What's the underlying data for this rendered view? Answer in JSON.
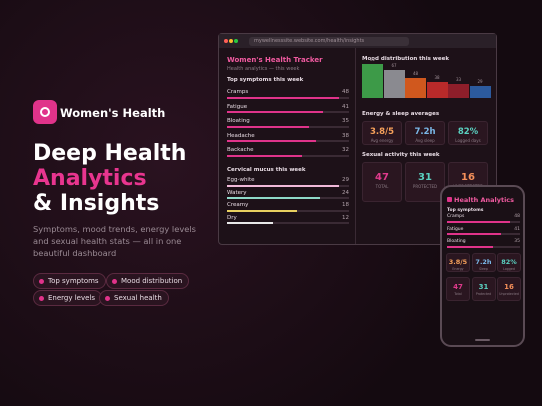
{
  "brand": "Women's Health",
  "headline": [
    "Deep Health",
    "Analytics",
    "& Insights"
  ],
  "description": "Symptoms, mood trends, energy levels and sexual health stats — all in one beautiful dashboard",
  "features": [
    "Top symptoms",
    "Mood distribution",
    "Energy levels",
    "Sexual health"
  ],
  "browser": {
    "url": "mywellnesssite.website.com/health/insights",
    "title": "Women's Health Tracker",
    "subtitle": "Health analytics — this week",
    "symptoms": {
      "heading": "Top symptoms this week",
      "color": "#e0338a",
      "items": [
        {
          "label": "Cramps",
          "value": 48
        },
        {
          "label": "Fatigue",
          "value": 41
        },
        {
          "label": "Bloating",
          "value": 35
        },
        {
          "label": "Headache",
          "value": 38
        },
        {
          "label": "Backache",
          "value": 32
        }
      ]
    },
    "mucus": {
      "heading": "Cervical mucus this week",
      "items": [
        {
          "label": "Egg-white",
          "value": 29,
          "color": "#f0b8d8"
        },
        {
          "label": "Watery",
          "value": 24,
          "color": "#8fd8c8"
        },
        {
          "label": "Creamy",
          "value": 18,
          "color": "#e8d060"
        },
        {
          "label": "Dry",
          "value": 12,
          "color": "#e8e8e8"
        }
      ]
    },
    "mood": {
      "heading": "Mood distribution this week",
      "values": [
        82,
        67,
        48,
        38,
        33,
        29
      ],
      "colors": [
        "#3d9a48",
        "#8a8a90",
        "#d0581e",
        "#b82a2a",
        "#8e1e2a",
        "#2c5a9e"
      ]
    },
    "energy": {
      "heading": "Energy & sleep averages",
      "stats": [
        {
          "value": "3.8/5",
          "label": "Avg energy",
          "color": "#f5a05a"
        },
        {
          "value": "7.2h",
          "label": "Avg sleep",
          "color": "#7ab8e8"
        },
        {
          "value": "82%",
          "label": "Logged days",
          "color": "#5ad0c0"
        }
      ]
    },
    "sexual": {
      "heading": "Sexual activity this week",
      "stats": [
        {
          "value": 47,
          "label": "TOTAL",
          "color": "#e03a8c"
        },
        {
          "value": 31,
          "label": "PROTECTED",
          "color": "#5ad0c0"
        },
        {
          "value": 16,
          "label": "UNPROTECTED",
          "color": "#f5905a"
        }
      ]
    }
  },
  "phone": {
    "title": "Health Analytics",
    "symptoms_heading": "Top symptoms",
    "energy_labels": [
      "Energy",
      "Sleep",
      "Logged"
    ],
    "sexual_labels": [
      "Total",
      "Protected",
      "Unprotected"
    ]
  }
}
